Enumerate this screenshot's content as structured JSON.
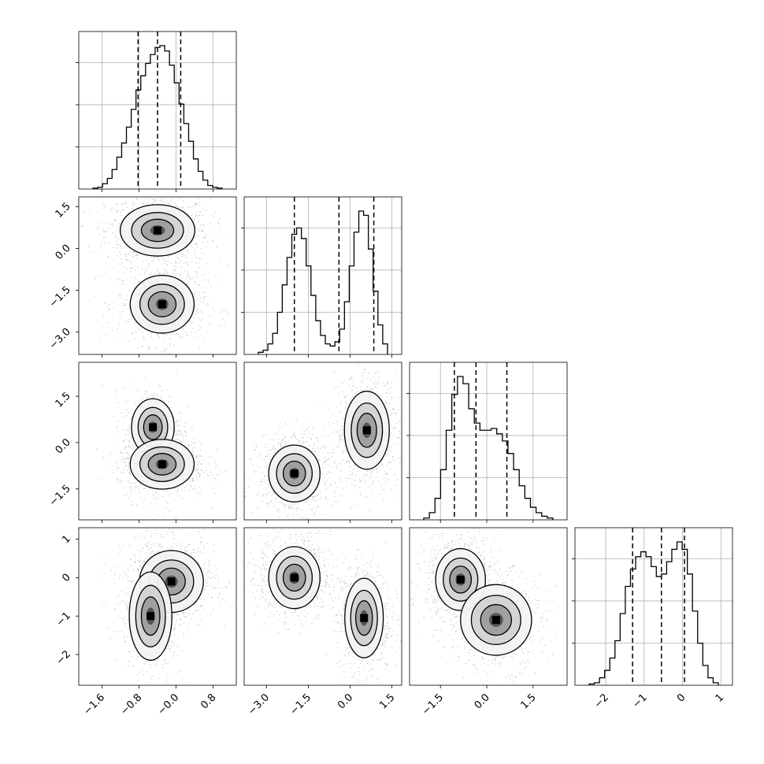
{
  "chart_data": {
    "type": "corner",
    "params": [
      {
        "ticks": [
          -1.6,
          -0.8,
          0.0,
          0.8
        ],
        "tick_labels": [
          "−1.6",
          "−0.8",
          "−0.0",
          "0.8"
        ],
        "range": [
          -2.1,
          1.3
        ],
        "quantiles": [
          -0.82,
          -0.4,
          0.1
        ]
      },
      {
        "ticks": [
          -3.0,
          -1.5,
          0.0,
          1.5
        ],
        "tick_labels": [
          "−3.0",
          "−1.5",
          "0.0",
          "1.5"
        ],
        "range": [
          -3.8,
          1.85
        ],
        "quantiles": [
          -2.0,
          -0.4,
          0.85
        ]
      },
      {
        "ticks": [
          -1.5,
          0.0,
          1.5
        ],
        "tick_labels": [
          "−1.5",
          "0.0",
          "1.5"
        ],
        "range": [
          -2.5,
          2.6
        ],
        "quantiles": [
          -1.05,
          -0.35,
          0.65
        ]
      },
      {
        "ticks": [
          -2,
          -1,
          0,
          1
        ],
        "tick_labels": [
          "−2",
          "−1",
          "0",
          "1"
        ],
        "range": [
          -2.8,
          1.3
        ],
        "quantiles": [
          -1.3,
          -0.55,
          0.05
        ]
      }
    ],
    "histograms": [
      {
        "param": 0,
        "counts": [
          0.5,
          1,
          3,
          6,
          11,
          18,
          26,
          35,
          45,
          56,
          64,
          71,
          76,
          80,
          81,
          78,
          70,
          60,
          48,
          37,
          27,
          17,
          10,
          5,
          2,
          1,
          0.5
        ]
      },
      {
        "param": 1,
        "counts": [
          1,
          2,
          5,
          10,
          20,
          33,
          46,
          57,
          60,
          55,
          42,
          28,
          16,
          9,
          5,
          4,
          6,
          12,
          25,
          42,
          58,
          68,
          66,
          50,
          30,
          14,
          5
        ]
      },
      {
        "param": 2,
        "counts": [
          1,
          4,
          12,
          28,
          50,
          70,
          80,
          76,
          62,
          54,
          50,
          50,
          51,
          48,
          44,
          37,
          28,
          19,
          12,
          7,
          4,
          2,
          1
        ]
      },
      {
        "param": 3,
        "counts": [
          0.5,
          1,
          3,
          6,
          11,
          18,
          29,
          40,
          47,
          52,
          54,
          52,
          48,
          44,
          45,
          50,
          55,
          58,
          55,
          45,
          30,
          17,
          8,
          3,
          1
        ]
      }
    ],
    "density_pairs": [
      {
        "x": 0,
        "y": 1,
        "blobs": [
          {
            "cx": -0.4,
            "cy": 0.65,
            "sx": 0.35,
            "sy": 0.4,
            "w": 1
          },
          {
            "cx": -0.3,
            "cy": -2.0,
            "sx": 0.3,
            "sy": 0.45,
            "w": 0.8
          }
        ]
      },
      {
        "x": 0,
        "y": 2,
        "blobs": [
          {
            "cx": -0.5,
            "cy": 0.5,
            "sx": 0.2,
            "sy": 0.4,
            "w": 0.5
          },
          {
            "cx": -0.3,
            "cy": -0.7,
            "sx": 0.3,
            "sy": 0.35,
            "w": 1
          }
        ]
      },
      {
        "x": 1,
        "y": 2,
        "blobs": [
          {
            "cx": -2.0,
            "cy": -1.0,
            "sx": 0.4,
            "sy": 0.4,
            "w": 1
          },
          {
            "cx": 0.6,
            "cy": 0.4,
            "sx": 0.35,
            "sy": 0.55,
            "w": 0.9
          }
        ]
      },
      {
        "x": 0,
        "y": 3,
        "blobs": [
          {
            "cx": -0.1,
            "cy": -0.1,
            "sx": 0.3,
            "sy": 0.35,
            "w": 1
          },
          {
            "cx": -0.55,
            "cy": -1.0,
            "sx": 0.2,
            "sy": 0.5,
            "w": 0.6
          }
        ]
      },
      {
        "x": 1,
        "y": 3,
        "blobs": [
          {
            "cx": -2.0,
            "cy": 0.0,
            "sx": 0.4,
            "sy": 0.35,
            "w": 1
          },
          {
            "cx": 0.5,
            "cy": -1.05,
            "sx": 0.3,
            "sy": 0.45,
            "w": 0.9
          }
        ]
      },
      {
        "x": 2,
        "y": 3,
        "blobs": [
          {
            "cx": -0.85,
            "cy": -0.05,
            "sx": 0.35,
            "sy": 0.35,
            "w": 1
          },
          {
            "cx": 0.3,
            "cy": -1.1,
            "sx": 0.5,
            "sy": 0.4,
            "w": 0.7
          }
        ]
      }
    ]
  }
}
